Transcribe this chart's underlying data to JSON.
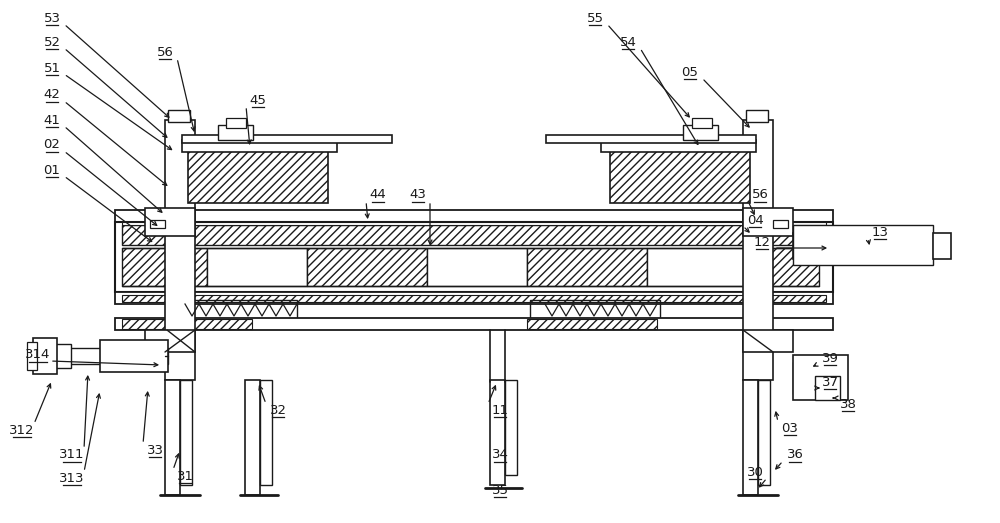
{
  "bg_color": "#ffffff",
  "lc": "#1a1a1a",
  "lw": 1.2,
  "figsize": [
    10.0,
    5.23
  ],
  "dpi": 100
}
